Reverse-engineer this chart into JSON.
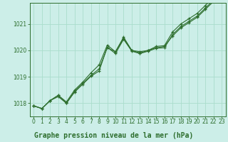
{
  "x": [
    0,
    1,
    2,
    3,
    4,
    5,
    6,
    7,
    8,
    9,
    10,
    11,
    12,
    13,
    14,
    15,
    16,
    17,
    18,
    19,
    20,
    21,
    22,
    23
  ],
  "line1": [
    1017.9,
    1017.8,
    1018.1,
    1018.3,
    1018.0,
    1018.45,
    1018.75,
    1019.05,
    1019.3,
    1020.1,
    1019.95,
    1020.5,
    1020.0,
    1019.9,
    1020.0,
    1020.1,
    1020.15,
    1020.55,
    1020.85,
    1021.05,
    1021.25,
    1021.55,
    1021.85,
    1021.85
  ],
  "line2": [
    1017.9,
    1017.8,
    1018.1,
    1018.3,
    1018.05,
    1018.5,
    1018.8,
    1019.15,
    1019.45,
    1020.2,
    1019.95,
    1020.45,
    1020.0,
    1019.95,
    1020.0,
    1020.15,
    1020.18,
    1020.7,
    1021.0,
    1021.2,
    1021.4,
    1021.7,
    1022.0,
    1022.0
  ],
  "line3": [
    1017.9,
    1017.8,
    1018.1,
    1018.25,
    1018.0,
    1018.42,
    1018.72,
    1019.02,
    1019.22,
    1020.12,
    1019.88,
    1020.42,
    1019.97,
    1019.88,
    1019.97,
    1020.08,
    1020.1,
    1020.6,
    1020.9,
    1021.1,
    1021.3,
    1021.6,
    1021.9,
    1021.9
  ],
  "bg_color": "#cceee8",
  "grid_color": "#aaddcc",
  "line_color": "#2d6e2d",
  "marker": "+",
  "title": "Graphe pression niveau de la mer (hPa)",
  "ylim": [
    1017.5,
    1021.8
  ],
  "xlim": [
    -0.5,
    23.5
  ],
  "yticks": [
    1018,
    1019,
    1020,
    1021
  ],
  "xticks": [
    0,
    1,
    2,
    3,
    4,
    5,
    6,
    7,
    8,
    9,
    10,
    11,
    12,
    13,
    14,
    15,
    16,
    17,
    18,
    19,
    20,
    21,
    22,
    23
  ],
  "title_fontsize": 7.0,
  "tick_fontsize": 5.5,
  "line_width": 0.8,
  "marker_size": 3.5
}
